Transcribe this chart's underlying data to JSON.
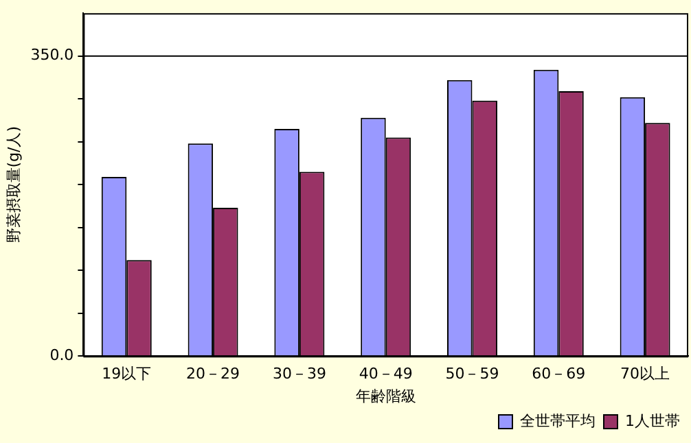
{
  "chart_data": {
    "type": "bar",
    "xlabel": "年齢階級",
    "ylabel": "野菜摂取量(g/人)",
    "categories": [
      "19以下",
      "20－29",
      "30－39",
      "40－49",
      "50－59",
      "60－69",
      "70以上"
    ],
    "series": [
      {
        "name": "全世帯平均",
        "color": "#9999ff",
        "values": [
          209,
          248,
          265,
          278,
          322,
          334,
          302
        ]
      },
      {
        "name": "1人世帯",
        "color": "#993366",
        "values": [
          112,
          173,
          215,
          255,
          298,
          309,
          272
        ]
      }
    ],
    "ylim": [
      0,
      400
    ],
    "yticks": [
      {
        "value": 0,
        "label": "0.0"
      },
      {
        "value": 50,
        "label": null
      },
      {
        "value": 100,
        "label": null
      },
      {
        "value": 150,
        "label": null
      },
      {
        "value": 200,
        "label": null
      },
      {
        "value": 250,
        "label": null
      },
      {
        "value": 300,
        "label": null
      },
      {
        "value": 350,
        "label": "350.0"
      }
    ],
    "ref_lines": [
      {
        "axis": "y",
        "value": 350,
        "color": "#000000"
      }
    ],
    "grid": false,
    "legend": "bottom right"
  }
}
